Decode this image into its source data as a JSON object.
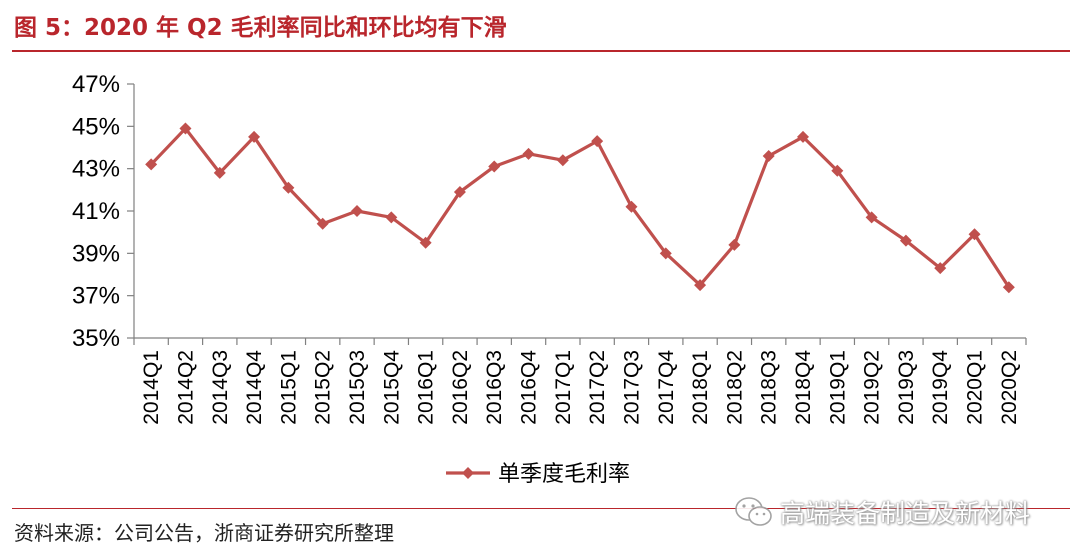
{
  "figure": {
    "title": "图 5：2020 年 Q2 毛利率同比和环比均有下滑",
    "source": "资料来源：公司公告，浙商证券研究所整理",
    "watermark": "高端装备制造及新材料"
  },
  "colors": {
    "accent": "#b9262c",
    "series": "#c0504d"
  },
  "chart_data": {
    "type": "line",
    "title": "",
    "xlabel": "",
    "ylabel": "",
    "x": [
      "2014Q1",
      "2014Q2",
      "2014Q3",
      "2014Q4",
      "2015Q1",
      "2015Q2",
      "2015Q3",
      "2015Q4",
      "2016Q1",
      "2016Q2",
      "2016Q3",
      "2016Q4",
      "2017Q1",
      "2017Q2",
      "2017Q3",
      "2017Q4",
      "2018Q1",
      "2018Q2",
      "2018Q3",
      "2018Q4",
      "2019Q1",
      "2019Q2",
      "2019Q3",
      "2019Q4",
      "2020Q1",
      "2020Q2"
    ],
    "series": [
      {
        "name": "单季度毛利率",
        "marker": "diamond",
        "values": [
          43.2,
          44.9,
          42.8,
          44.5,
          42.1,
          40.4,
          41.0,
          40.7,
          39.5,
          41.9,
          43.1,
          43.7,
          43.4,
          44.3,
          41.2,
          39.0,
          37.5,
          39.4,
          43.6,
          44.5,
          42.9,
          40.7,
          39.6,
          38.3,
          39.9,
          37.4
        ]
      }
    ],
    "ylim": [
      35,
      47
    ],
    "yticks": [
      35,
      37,
      39,
      41,
      43,
      45,
      47
    ],
    "ytick_labels": [
      "35%",
      "37%",
      "39%",
      "41%",
      "43%",
      "45%",
      "47%"
    ],
    "grid": false,
    "legend_position": "bottom-center"
  }
}
